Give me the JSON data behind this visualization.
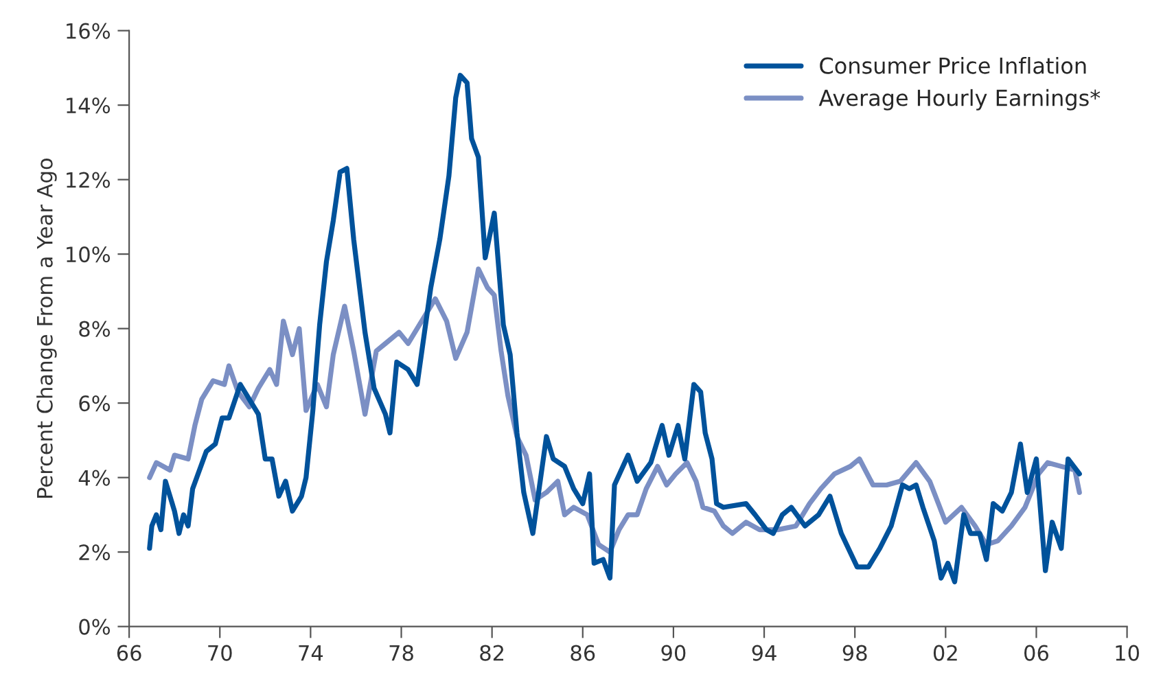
{
  "chart_data": {
    "type": "line",
    "ylabel": "Percent Change From a Year Ago",
    "xlim": [
      1966,
      2010
    ],
    "xticks": [
      {
        "value": 1966,
        "label": "66"
      },
      {
        "value": 1970,
        "label": "70"
      },
      {
        "value": 1974,
        "label": "74"
      },
      {
        "value": 1978,
        "label": "78"
      },
      {
        "value": 1982,
        "label": "82"
      },
      {
        "value": 1986,
        "label": "86"
      },
      {
        "value": 1990,
        "label": "90"
      },
      {
        "value": 1994,
        "label": "94"
      },
      {
        "value": 1998,
        "label": "98"
      },
      {
        "value": 2002,
        "label": "02"
      },
      {
        "value": 2006,
        "label": "06"
      },
      {
        "value": 2010,
        "label": "10"
      }
    ],
    "ylim": [
      0,
      16
    ],
    "yticks": [
      {
        "value": 0,
        "label": "0%"
      },
      {
        "value": 2,
        "label": "2%"
      },
      {
        "value": 4,
        "label": "4%"
      },
      {
        "value": 6,
        "label": "6%"
      },
      {
        "value": 8,
        "label": "8%"
      },
      {
        "value": 10,
        "label": "10%"
      },
      {
        "value": 12,
        "label": "12%"
      },
      {
        "value": 14,
        "label": "14%"
      },
      {
        "value": 16,
        "label": "16%"
      }
    ],
    "grid": false,
    "legend": "top right",
    "marker": "none",
    "line_style": "solid",
    "series": [
      {
        "name": "Consumer Price Inflation",
        "color": "#00529b",
        "x": [
          1966.9,
          1967.0,
          1967.2,
          1967.4,
          1967.6,
          1968.0,
          1968.2,
          1968.4,
          1968.6,
          1968.8,
          1969.4,
          1969.8,
          1970.1,
          1970.4,
          1970.9,
          1971.7,
          1972.0,
          1972.3,
          1972.6,
          1972.9,
          1973.2,
          1973.6,
          1973.8,
          1974.1,
          1974.4,
          1974.7,
          1975.0,
          1975.3,
          1975.6,
          1975.9,
          1976.1,
          1976.4,
          1976.8,
          1977.3,
          1977.5,
          1977.8,
          1978.3,
          1978.7,
          1979.3,
          1979.7,
          1980.1,
          1980.4,
          1980.6,
          1980.9,
          1981.1,
          1981.4,
          1981.7,
          1982.1,
          1982.5,
          1982.8,
          1983.1,
          1983.4,
          1983.8,
          1984.4,
          1984.7,
          1985.2,
          1985.6,
          1986.0,
          1986.3,
          1986.5,
          1986.9,
          1987.2,
          1987.4,
          1988.0,
          1988.4,
          1989.0,
          1989.5,
          1989.8,
          1990.2,
          1990.5,
          1990.9,
          1991.2,
          1991.4,
          1991.7,
          1991.9,
          1992.2,
          1993.2,
          1993.6,
          1994.1,
          1994.4,
          1994.8,
          1995.2,
          1995.8,
          1996.4,
          1996.9,
          1997.4,
          1998.1,
          1998.6,
          1999.1,
          1999.6,
          2000.1,
          2000.4,
          2000.7,
          2001.0,
          2001.5,
          2001.8,
          2002.1,
          2002.4,
          2002.8,
          2003.1,
          2003.5,
          2003.8,
          2004.1,
          2004.5,
          2004.9,
          2005.3,
          2005.6,
          2006.0,
          2006.4,
          2006.7,
          2007.1,
          2007.4,
          2007.9
        ],
        "values": [
          2.1,
          2.7,
          3.0,
          2.6,
          3.9,
          3.1,
          2.5,
          3.0,
          2.7,
          3.7,
          4.7,
          4.9,
          5.6,
          5.6,
          6.5,
          5.7,
          4.5,
          4.5,
          3.5,
          3.9,
          3.1,
          3.5,
          4.0,
          5.8,
          8.1,
          9.8,
          10.9,
          12.2,
          12.3,
          10.4,
          9.4,
          7.9,
          6.4,
          5.7,
          5.2,
          7.1,
          6.9,
          6.5,
          9.1,
          10.4,
          12.1,
          14.2,
          14.8,
          14.6,
          13.1,
          12.6,
          9.9,
          11.1,
          8.1,
          7.3,
          5.2,
          3.6,
          2.5,
          5.1,
          4.5,
          4.3,
          3.7,
          3.3,
          4.1,
          1.7,
          1.8,
          1.3,
          3.8,
          4.6,
          3.9,
          4.4,
          5.4,
          4.6,
          5.4,
          4.5,
          6.5,
          6.3,
          5.2,
          4.5,
          3.3,
          3.2,
          3.3,
          3.0,
          2.6,
          2.5,
          3.0,
          3.2,
          2.7,
          3.0,
          3.5,
          2.5,
          1.6,
          1.6,
          2.1,
          2.7,
          3.8,
          3.7,
          3.8,
          3.2,
          2.3,
          1.3,
          1.7,
          1.2,
          3.0,
          2.5,
          2.5,
          1.8,
          3.3,
          3.1,
          3.6,
          4.9,
          3.6,
          4.5,
          1.5,
          2.8,
          2.1,
          4.5,
          4.1
        ]
      },
      {
        "name": "Average Hourly Earnings*",
        "color": "#7b8fc4",
        "x": [
          1966.9,
          1967.2,
          1967.8,
          1968.0,
          1968.6,
          1968.9,
          1969.2,
          1969.7,
          1970.2,
          1970.4,
          1970.8,
          1971.3,
          1971.7,
          1972.2,
          1972.5,
          1972.8,
          1973.2,
          1973.5,
          1973.8,
          1974.3,
          1974.7,
          1975.0,
          1975.5,
          1975.9,
          1976.4,
          1976.9,
          1977.3,
          1977.9,
          1978.3,
          1978.8,
          1979.5,
          1980.0,
          1980.4,
          1980.9,
          1981.4,
          1981.8,
          1982.1,
          1982.4,
          1982.7,
          1983.1,
          1983.5,
          1983.9,
          1984.4,
          1984.9,
          1985.2,
          1985.6,
          1986.2,
          1986.7,
          1987.2,
          1987.6,
          1988.0,
          1988.4,
          1988.8,
          1989.3,
          1989.7,
          1990.1,
          1990.6,
          1991.0,
          1991.3,
          1991.8,
          1992.2,
          1992.6,
          1993.2,
          1993.8,
          1994.6,
          1995.4,
          1996.0,
          1996.5,
          1997.1,
          1997.8,
          1998.2,
          1998.8,
          1999.4,
          2000.0,
          2000.7,
          2001.3,
          2002.0,
          2002.7,
          2003.3,
          2003.8,
          2004.3,
          2004.9,
          2005.5,
          2006.1,
          2006.5,
          2007.1,
          2007.7,
          2007.9
        ],
        "values": [
          4.0,
          4.4,
          4.2,
          4.6,
          4.5,
          5.4,
          6.1,
          6.6,
          6.5,
          7.0,
          6.3,
          5.9,
          6.4,
          6.9,
          6.5,
          8.2,
          7.3,
          8.0,
          5.8,
          6.5,
          5.9,
          7.3,
          8.6,
          7.4,
          5.7,
          7.4,
          7.6,
          7.9,
          7.6,
          8.1,
          8.8,
          8.2,
          7.2,
          7.9,
          9.6,
          9.1,
          8.9,
          7.4,
          6.2,
          5.1,
          4.6,
          3.4,
          3.6,
          3.9,
          3.0,
          3.2,
          3.0,
          2.2,
          2.0,
          2.6,
          3.0,
          3.0,
          3.7,
          4.3,
          3.8,
          4.1,
          4.4,
          3.9,
          3.2,
          3.1,
          2.7,
          2.5,
          2.8,
          2.6,
          2.6,
          2.7,
          3.3,
          3.7,
          4.1,
          4.3,
          4.5,
          3.8,
          3.8,
          3.9,
          4.4,
          3.9,
          2.8,
          3.2,
          2.7,
          2.2,
          2.3,
          2.7,
          3.2,
          4.1,
          4.4,
          4.3,
          4.2,
          3.6
        ]
      }
    ]
  }
}
